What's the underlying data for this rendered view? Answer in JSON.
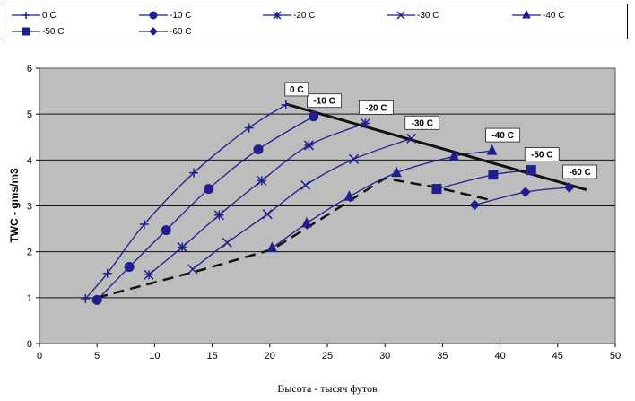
{
  "chart_data": {
    "type": "line",
    "xlabel": "Высота - тысяч футов",
    "ylabel": "TWC - gms/m3",
    "xlim": [
      0,
      50
    ],
    "ylim": [
      0,
      6
    ],
    "x_ticks": [
      0,
      5,
      10,
      15,
      20,
      25,
      30,
      35,
      40,
      45,
      50
    ],
    "y_ticks": [
      0,
      1,
      2,
      3,
      4,
      5,
      6
    ],
    "grid": true,
    "legend_placement": "top",
    "series": [
      {
        "name": "-60 C",
        "label": "-60 C",
        "marker": "diamond",
        "color": "#1f1f8f",
        "points": [
          [
            37.8,
            3.02
          ],
          [
            42.2,
            3.3
          ],
          [
            46.0,
            3.4
          ]
        ]
      },
      {
        "name": "-50 C",
        "label": "-50 C",
        "marker": "square",
        "color": "#1f1f8f",
        "points": [
          [
            34.5,
            3.37
          ],
          [
            39.4,
            3.68
          ],
          [
            42.7,
            3.78
          ]
        ]
      },
      {
        "name": "-40 C",
        "label": "-40 C",
        "marker": "triangle",
        "color": "#1f1f8f",
        "points": [
          [
            20.2,
            2.08
          ],
          [
            23.2,
            2.62
          ],
          [
            26.9,
            3.2
          ],
          [
            31.0,
            3.72
          ],
          [
            36.0,
            4.08
          ],
          [
            39.3,
            4.2
          ]
        ]
      },
      {
        "name": "-30 C",
        "label": "-30 C",
        "marker": "x",
        "color": "#1f1f8f",
        "points": [
          [
            13.3,
            1.62
          ],
          [
            16.3,
            2.2
          ],
          [
            19.8,
            2.82
          ],
          [
            23.1,
            3.45
          ],
          [
            27.3,
            4.02
          ],
          [
            32.3,
            4.47
          ]
        ]
      },
      {
        "name": "-20 C",
        "label": "-20 C",
        "marker": "star",
        "color": "#1f1f8f",
        "points": [
          [
            9.5,
            1.5
          ],
          [
            12.4,
            2.1
          ],
          [
            15.6,
            2.8
          ],
          [
            19.3,
            3.55
          ],
          [
            23.4,
            4.32
          ],
          [
            28.3,
            4.8
          ]
        ]
      },
      {
        "name": "-10 C",
        "label": "-10 C",
        "marker": "circle",
        "color": "#1f1f8f",
        "points": [
          [
            5.0,
            0.95
          ],
          [
            7.8,
            1.67
          ],
          [
            11.0,
            2.47
          ],
          [
            14.7,
            3.37
          ],
          [
            19.0,
            4.23
          ],
          [
            23.8,
            4.95
          ]
        ]
      },
      {
        "name": "0 C",
        "label": "0 C",
        "marker": "plus",
        "color": "#1f1f8f",
        "points": [
          [
            4.0,
            0.98
          ],
          [
            5.9,
            1.53
          ],
          [
            9.1,
            2.6
          ],
          [
            13.4,
            3.72
          ],
          [
            18.2,
            4.7
          ],
          [
            21.4,
            5.2
          ]
        ]
      }
    ],
    "envelope_line": [
      [
        21.4,
        5.22
      ],
      [
        47.5,
        3.35
      ]
    ],
    "dashed_line": [
      [
        5.0,
        1.0
      ],
      [
        9.5,
        1.3
      ],
      [
        14.0,
        1.6
      ],
      [
        20.2,
        2.05
      ],
      [
        25.0,
        2.8
      ],
      [
        30.0,
        3.6
      ],
      [
        34.5,
        3.4
      ],
      [
        39.3,
        3.12
      ]
    ]
  }
}
